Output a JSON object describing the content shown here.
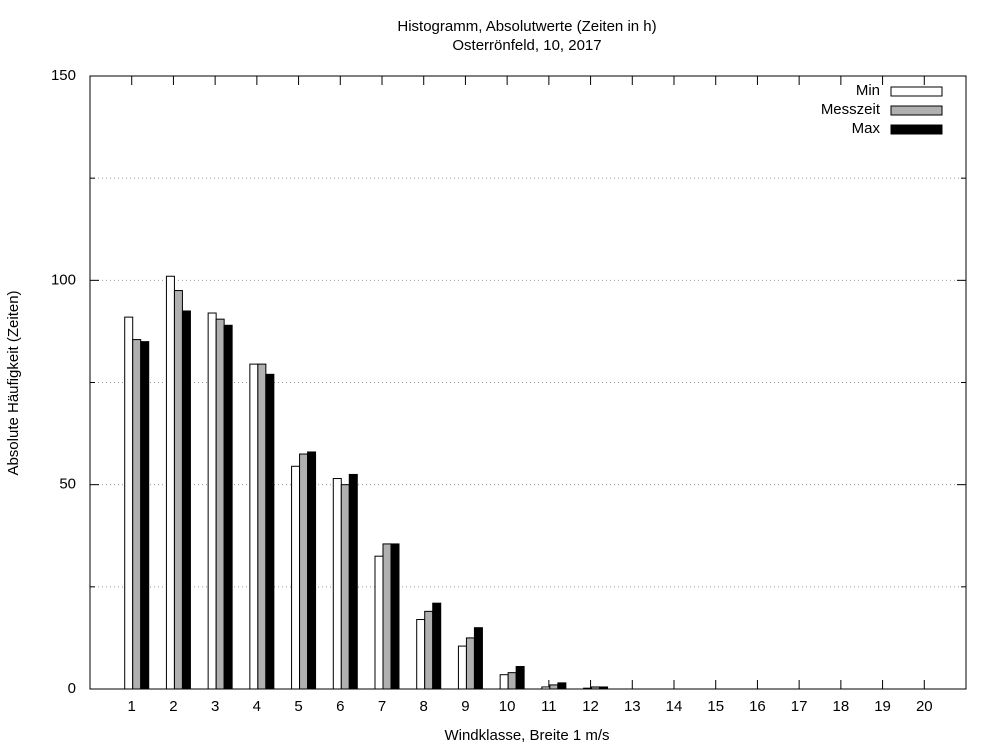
{
  "chart_data": {
    "type": "bar",
    "title": "Histogramm, Absolutwerte (Zeiten in h)",
    "subtitle": "Osterrönfeld, 10, 2017",
    "x_label": "Windklasse, Breite 1 m/s",
    "y_label": "Absolute Häufigkeit (Zeiten)",
    "categories": [
      "1",
      "2",
      "3",
      "4",
      "5",
      "6",
      "7",
      "8",
      "9",
      "10",
      "11",
      "12",
      "13",
      "14",
      "15",
      "16",
      "17",
      "18",
      "19",
      "20"
    ],
    "series": [
      {
        "name": "Min",
        "color": "#ffffff",
        "values": [
          91,
          101,
          92,
          79.5,
          54.5,
          51.5,
          32.5,
          17,
          10.5,
          3.5,
          0.5,
          0.2,
          0,
          0,
          0,
          0,
          0,
          0,
          0,
          0
        ]
      },
      {
        "name": "Messzeit",
        "color": "#b0b0b0",
        "values": [
          85.5,
          97.5,
          90.5,
          79.5,
          57.5,
          50,
          35.5,
          19,
          12.5,
          4,
          1,
          0.5,
          0,
          0,
          0,
          0,
          0,
          0,
          0,
          0
        ]
      },
      {
        "name": "Max",
        "color": "#000000",
        "values": [
          85,
          92.5,
          89,
          77,
          58,
          52.5,
          35.5,
          21,
          15,
          5.5,
          1.5,
          0.5,
          0,
          0,
          0,
          0,
          0,
          0,
          0,
          0
        ]
      }
    ],
    "ylim": [
      0,
      150
    ],
    "yticks": [
      0,
      50,
      100,
      150
    ],
    "yticks_minor": [
      25,
      75,
      125
    ],
    "grid": true,
    "legend": "top-right"
  }
}
